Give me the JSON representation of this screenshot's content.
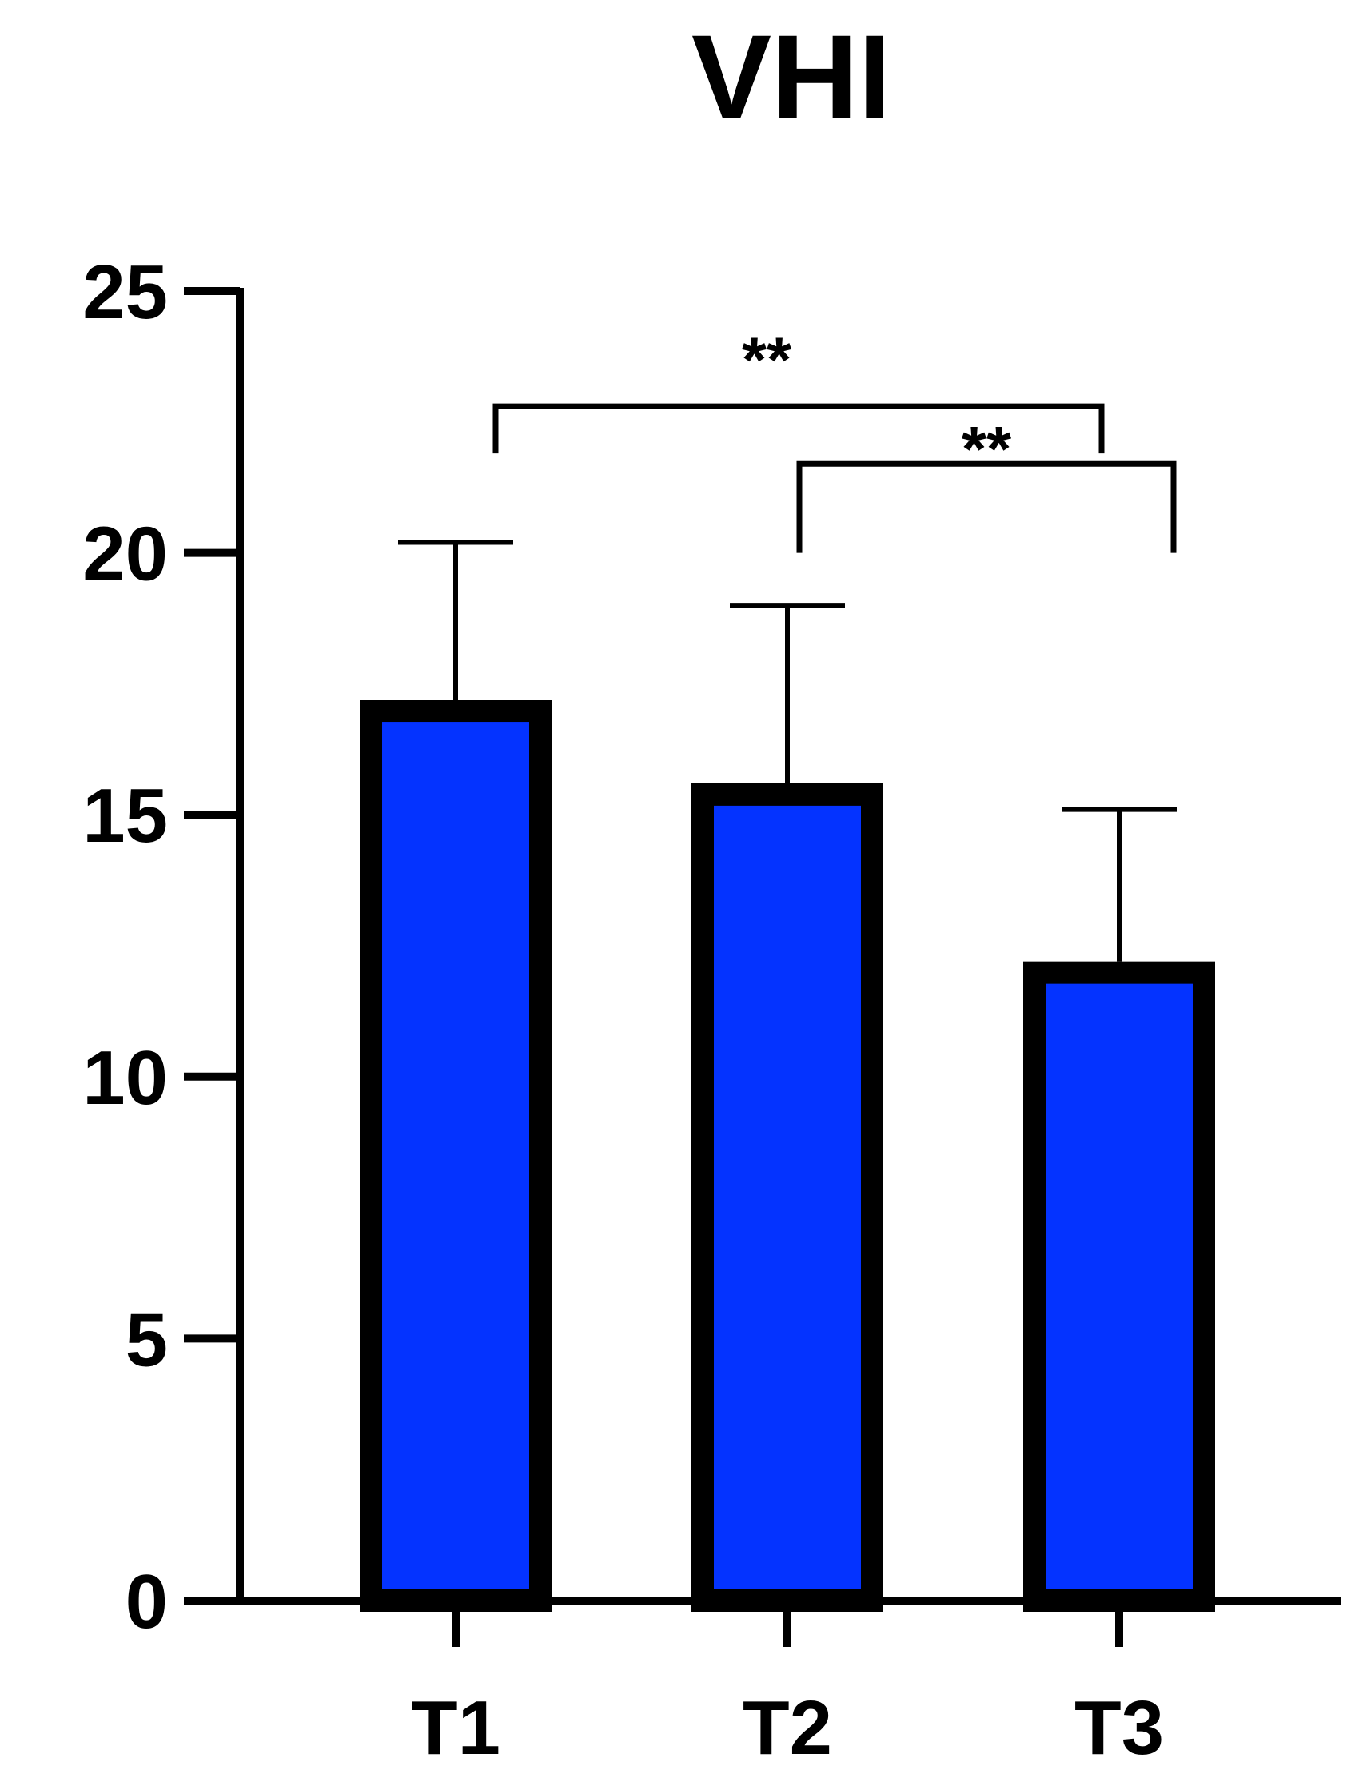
{
  "chart_data": {
    "type": "bar",
    "title": "VHI",
    "xlabel": "",
    "ylabel": "",
    "categories": [
      "T1",
      "T2",
      "T3"
    ],
    "values": [
      17.2,
      15.6,
      12.2
    ],
    "error_upper": [
      20.2,
      19.0,
      15.1
    ],
    "ylim": [
      0,
      25
    ],
    "yticks": [
      0,
      5,
      10,
      15,
      20,
      25
    ],
    "ytick_labels": [
      "0",
      "5",
      "10",
      "15",
      "20",
      "25"
    ],
    "grid": false,
    "bar_color": "#0433FF",
    "bar_edge_color": "#000000",
    "significance": [
      {
        "from": "T1",
        "to": "T3",
        "label": "**"
      },
      {
        "from": "T2",
        "to": "T3",
        "label": "**"
      }
    ]
  }
}
